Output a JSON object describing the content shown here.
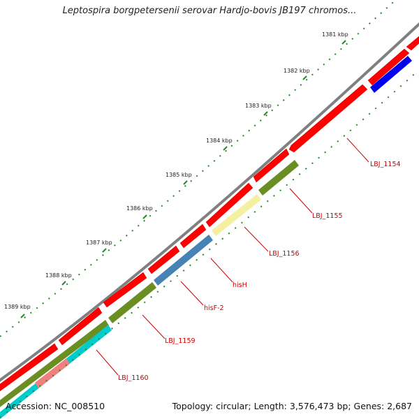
{
  "title": "Leptospira borgpetersenii serovar Hardjo-bovis JB197 chromos...",
  "footer": {
    "accession": "Accession: NC_008510",
    "summary": "Topology: circular; Length: 3,576,473 bp; Genes: 2,687"
  },
  "ruler_labels": [
    "1381 kbp",
    "1382 kbp",
    "1383 kbp",
    "1384 kbp",
    "1385 kbp",
    "1386 kbp",
    "1387 kbp",
    "1388 kbp",
    "1389 kbp"
  ],
  "gene_labels": [
    "LBJ_1154",
    "LBJ_1155",
    "LBJ_1156",
    "hisH",
    "hisF-2",
    "LBJ_1159",
    "LBJ_1160"
  ],
  "colors": {
    "backbone": "#808080",
    "forward_gene": "#ff0000",
    "olive_gene": "#6b8e23",
    "yellow_gene": "#f5f0a0",
    "steelblue_gene": "#4682b4",
    "blue_gene": "#0000ee",
    "cyan_gene": "#00cccc",
    "pink_gene": "#f08080",
    "tick_green": "#228b22",
    "label_red": "#cc0000"
  }
}
